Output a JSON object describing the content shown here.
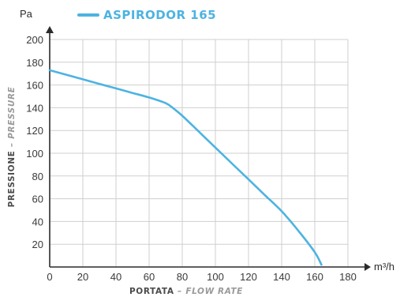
{
  "chart_data": {
    "type": "line",
    "series": [
      {
        "name": "ASPIRODOR 165",
        "color": "#4db3e1",
        "x": [
          0,
          10,
          20,
          30,
          40,
          50,
          60,
          70,
          75,
          80,
          90,
          100,
          110,
          120,
          130,
          140,
          150,
          160,
          164
        ],
        "y": [
          173,
          169,
          165,
          161,
          157,
          153,
          149,
          144,
          139,
          133,
          119,
          105,
          91,
          77,
          63,
          49,
          32,
          13,
          2
        ]
      }
    ],
    "x_ticks": [
      "0",
      "20",
      "40",
      "60",
      "80",
      "100",
      "120",
      "140",
      "160",
      "180"
    ],
    "y_ticks": [
      "20",
      "40",
      "60",
      "80",
      "100",
      "120",
      "140",
      "160",
      "180",
      "200"
    ],
    "xlim": [
      0,
      180
    ],
    "ylim": [
      0,
      200
    ],
    "grid": true,
    "x_unit": "m³/h",
    "y_unit": "Pa",
    "xlabel": "PORTATA",
    "xlabel_en": "FLOW RATE",
    "ylabel": "PRESSIONE",
    "ylabel_en": "PRESSURE",
    "separator": "–",
    "legend_position": "top"
  }
}
